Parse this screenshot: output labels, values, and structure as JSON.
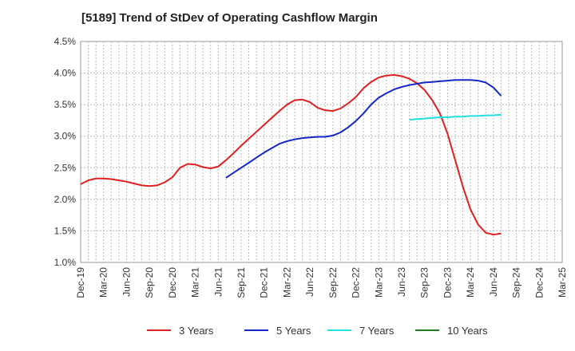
{
  "chart_data": {
    "type": "line",
    "title": "[5189]  Trend of StDev of Operating Cashflow Margin",
    "xlabel": "",
    "ylabel": "",
    "x_ticks": [
      "Dec-19",
      "Mar-20",
      "Jun-20",
      "Sep-20",
      "Dec-20",
      "Mar-21",
      "Jun-21",
      "Sep-21",
      "Dec-21",
      "Mar-22",
      "Jun-22",
      "Sep-22",
      "Dec-22",
      "Mar-23",
      "Jun-23",
      "Sep-23",
      "Dec-23",
      "Mar-24",
      "Jun-24",
      "Sep-24",
      "Dec-24",
      "Mar-25"
    ],
    "y_ticks": [
      "1.0%",
      "1.5%",
      "2.0%",
      "2.5%",
      "3.0%",
      "3.5%",
      "4.0%",
      "4.5%"
    ],
    "ylim": [
      1.0,
      4.5
    ],
    "grid": true,
    "legend_position": "bottom",
    "series": [
      {
        "name": "3 Years",
        "color": "#e02020",
        "points": [
          [
            0,
            2.24
          ],
          [
            1,
            2.3
          ],
          [
            2,
            2.33
          ],
          [
            3,
            2.33
          ],
          [
            4,
            2.32
          ],
          [
            5,
            2.3
          ],
          [
            6,
            2.28
          ],
          [
            7,
            2.25
          ],
          [
            8,
            2.22
          ],
          [
            9,
            2.21
          ],
          [
            10,
            2.22
          ],
          [
            11,
            2.27
          ],
          [
            12,
            2.35
          ],
          [
            13,
            2.5
          ],
          [
            14,
            2.56
          ],
          [
            15,
            2.55
          ],
          [
            16,
            2.51
          ],
          [
            17,
            2.49
          ],
          [
            18,
            2.52
          ],
          [
            19,
            2.62
          ],
          [
            20,
            2.73
          ],
          [
            21,
            2.85
          ],
          [
            22,
            2.96
          ],
          [
            23,
            3.07
          ],
          [
            24,
            3.18
          ],
          [
            25,
            3.29
          ],
          [
            26,
            3.4
          ],
          [
            27,
            3.5
          ],
          [
            28,
            3.57
          ],
          [
            29,
            3.58
          ],
          [
            30,
            3.54
          ],
          [
            31,
            3.45
          ],
          [
            32,
            3.41
          ],
          [
            33,
            3.4
          ],
          [
            34,
            3.44
          ],
          [
            35,
            3.52
          ],
          [
            36,
            3.62
          ],
          [
            37,
            3.76
          ],
          [
            38,
            3.86
          ],
          [
            39,
            3.93
          ],
          [
            40,
            3.96
          ],
          [
            41,
            3.97
          ],
          [
            42,
            3.95
          ],
          [
            43,
            3.91
          ],
          [
            44,
            3.84
          ],
          [
            45,
            3.73
          ],
          [
            46,
            3.57
          ],
          [
            47,
            3.36
          ],
          [
            48,
            3.04
          ],
          [
            49,
            2.62
          ],
          [
            50,
            2.2
          ],
          [
            51,
            1.84
          ],
          [
            52,
            1.6
          ],
          [
            53,
            1.47
          ],
          [
            54,
            1.44
          ],
          [
            55,
            1.46
          ]
        ]
      },
      {
        "name": "5 Years",
        "color": "#1428c8",
        "points": [
          [
            19,
            2.34
          ],
          [
            20,
            2.42
          ],
          [
            21,
            2.5
          ],
          [
            22,
            2.58
          ],
          [
            23,
            2.66
          ],
          [
            24,
            2.74
          ],
          [
            25,
            2.81
          ],
          [
            26,
            2.88
          ],
          [
            27,
            2.92
          ],
          [
            28,
            2.95
          ],
          [
            29,
            2.97
          ],
          [
            30,
            2.98
          ],
          [
            31,
            2.99
          ],
          [
            32,
            2.99
          ],
          [
            33,
            3.01
          ],
          [
            34,
            3.06
          ],
          [
            35,
            3.14
          ],
          [
            36,
            3.24
          ],
          [
            37,
            3.36
          ],
          [
            38,
            3.5
          ],
          [
            39,
            3.61
          ],
          [
            40,
            3.68
          ],
          [
            41,
            3.74
          ],
          [
            42,
            3.78
          ],
          [
            43,
            3.81
          ],
          [
            44,
            3.83
          ],
          [
            45,
            3.85
          ],
          [
            46,
            3.86
          ],
          [
            47,
            3.87
          ],
          [
            48,
            3.88
          ],
          [
            49,
            3.89
          ],
          [
            50,
            3.89
          ],
          [
            51,
            3.89
          ],
          [
            52,
            3.88
          ],
          [
            53,
            3.85
          ],
          [
            54,
            3.77
          ],
          [
            55,
            3.64
          ]
        ]
      },
      {
        "name": "7 Years",
        "color": "#20e0e0",
        "points": [
          [
            43,
            3.26
          ],
          [
            44,
            3.27
          ],
          [
            45,
            3.28
          ],
          [
            46,
            3.29
          ],
          [
            47,
            3.3
          ],
          [
            48,
            3.3
          ],
          [
            49,
            3.31
          ],
          [
            50,
            3.31
          ],
          [
            51,
            3.32
          ],
          [
            52,
            3.32
          ],
          [
            53,
            3.33
          ],
          [
            54,
            3.33
          ],
          [
            55,
            3.34
          ]
        ]
      },
      {
        "name": "10 Years",
        "color": "#208020",
        "points": []
      }
    ]
  }
}
